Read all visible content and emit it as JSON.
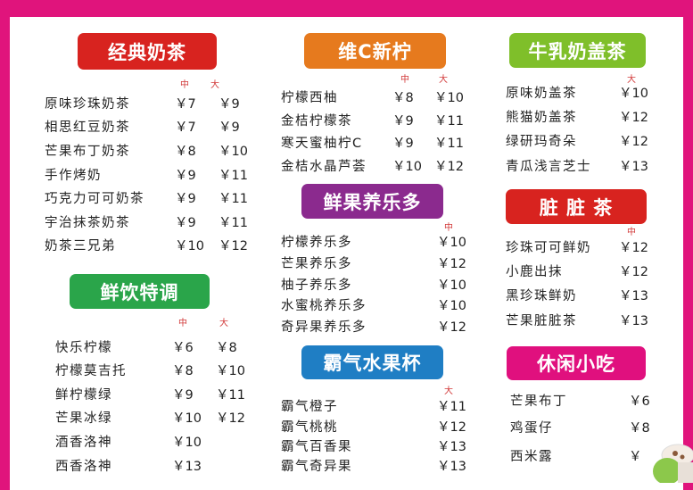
{
  "colors": {
    "border": "#e0147c",
    "classic": "#d8231f",
    "vitc": "#e67a1e",
    "milkcap": "#7fbf2a",
    "fresh": "#2aa54a",
    "yakult": "#8b2a8e",
    "fruitcup": "#1f7ec4",
    "dirty": "#d8231f",
    "snack": "#e0107e"
  },
  "size_labels": {
    "medium": "中",
    "large": "大"
  },
  "classic": {
    "title": "经典奶茶",
    "items": [
      {
        "name": "原味珍珠奶茶",
        "m": "￥7",
        "l": "￥9"
      },
      {
        "name": "相思红豆奶茶",
        "m": "￥7",
        "l": "￥9"
      },
      {
        "name": "芒果布丁奶茶",
        "m": "￥8",
        "l": "￥10"
      },
      {
        "name": "手作烤奶",
        "m": "￥9",
        "l": "￥11"
      },
      {
        "name": "巧克力可可奶茶",
        "m": "￥9",
        "l": "￥11"
      },
      {
        "name": "宇治抹茶奶茶",
        "m": "￥9",
        "l": "￥11"
      },
      {
        "name": "奶茶三兄弟",
        "m": "￥10",
        "l": "￥12"
      }
    ]
  },
  "fresh": {
    "title": "鲜饮特调",
    "items": [
      {
        "name": "快乐柠檬",
        "m": "￥6",
        "l": "￥8"
      },
      {
        "name": "柠檬莫吉托",
        "m": "￥8",
        "l": "￥10"
      },
      {
        "name": "鲜柠檬绿",
        "m": "￥9",
        "l": "￥11"
      },
      {
        "name": "芒果冰绿",
        "m": "￥10",
        "l": "￥12"
      },
      {
        "name": "酒香洛神",
        "m": "￥10"
      },
      {
        "name": "西香洛神",
        "m": "￥13"
      }
    ]
  },
  "vitc": {
    "title": "维C新柠",
    "items": [
      {
        "name": "柠檬西柚",
        "m": "￥8",
        "l": "￥10"
      },
      {
        "name": "金桔柠檬茶",
        "m": "￥9",
        "l": "￥11"
      },
      {
        "name": "寒天蜜柚柠C",
        "m": "￥9",
        "l": "￥11"
      },
      {
        "name": "金桔水晶芦荟",
        "m": "￥10",
        "l": "￥12"
      }
    ]
  },
  "yakult": {
    "title": "鲜果养乐多",
    "items": [
      {
        "name": "柠檬养乐多",
        "p": "￥10"
      },
      {
        "name": "芒果养乐多",
        "p": "￥12"
      },
      {
        "name": "柚子养乐多",
        "p": "￥10"
      },
      {
        "name": "水蜜桃养乐多",
        "p": "￥10"
      },
      {
        "name": "奇异果养乐多",
        "p": "￥12"
      }
    ]
  },
  "fruitcup": {
    "title": "霸气水果杯",
    "items": [
      {
        "name": "霸气橙子",
        "p": "￥11"
      },
      {
        "name": "霸气桃桃",
        "p": "￥12"
      },
      {
        "name": "霸气百香果",
        "p": "￥13"
      },
      {
        "name": "霸气奇异果",
        "p": "￥13"
      }
    ]
  },
  "milkcap": {
    "title": "牛乳奶盖茶",
    "items": [
      {
        "name": "原味奶盖茶",
        "p": "￥10"
      },
      {
        "name": "熊猫奶盖茶",
        "p": "￥12"
      },
      {
        "name": "绿研玛奇朵",
        "p": "￥12"
      },
      {
        "name": "青瓜浅言芝士",
        "p": "￥13"
      }
    ]
  },
  "dirty": {
    "title": "脏 脏 茶",
    "items": [
      {
        "name": "珍珠可可鲜奶",
        "p": "￥12"
      },
      {
        "name": "小鹿出抹",
        "p": "￥12"
      },
      {
        "name": "黑珍珠鲜奶",
        "p": "￥13"
      },
      {
        "name": "芒果脏脏茶",
        "p": "￥13"
      }
    ]
  },
  "snack": {
    "title": "休闲小吃",
    "items": [
      {
        "name": "芒果布丁",
        "p": "￥6"
      },
      {
        "name": "鸡蛋仔",
        "p": "￥8"
      },
      {
        "name": "西米露",
        "p": "￥"
      }
    ]
  }
}
